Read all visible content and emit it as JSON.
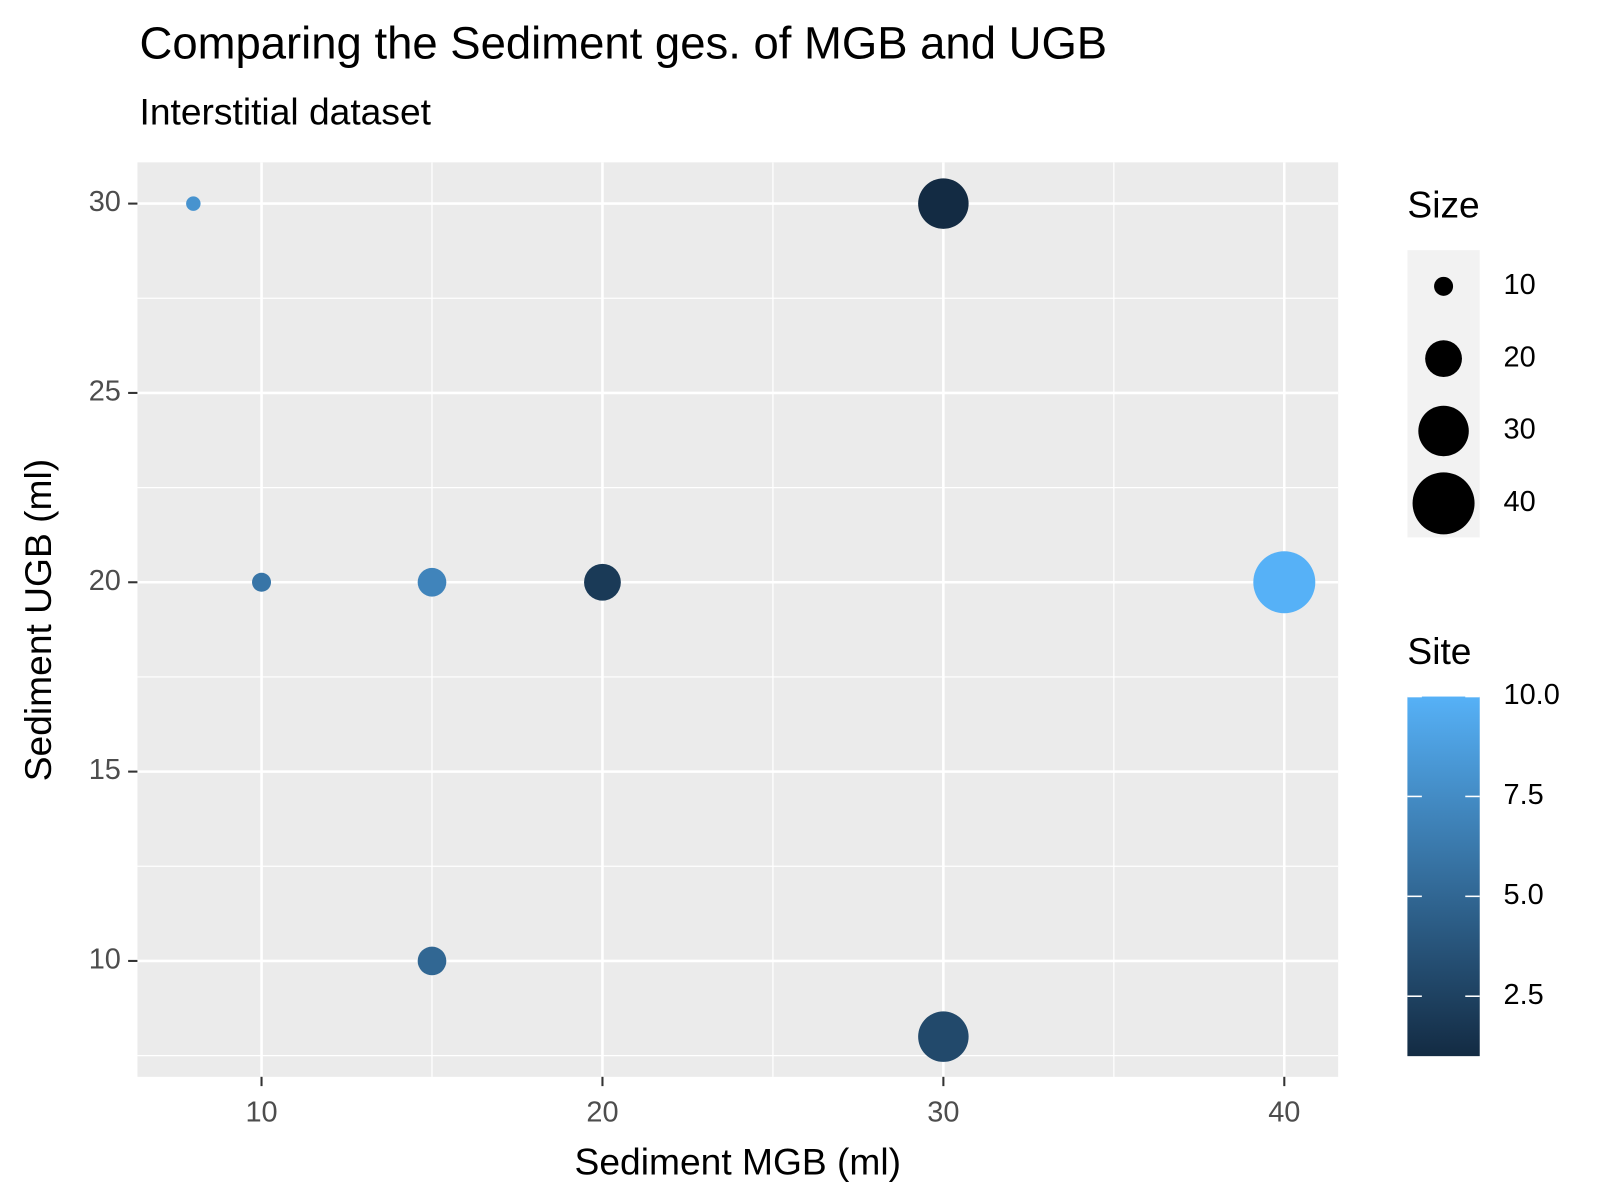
{
  "chart_data": {
    "type": "scatter",
    "title": "Comparing the Sediment ges. of MGB and UGB",
    "subtitle": "Interstitial dataset",
    "x_label": "Sediment MGB (ml)",
    "y_label": "Sediment UGB (ml)",
    "x": [
      8,
      10,
      15,
      20,
      30,
      40,
      15,
      30
    ],
    "y": [
      30,
      20,
      20,
      20,
      30,
      20,
      10,
      8
    ],
    "size": [
      8,
      10,
      15,
      20,
      30,
      40,
      15,
      30
    ],
    "site": [
      8,
      6,
      7,
      2,
      1,
      10,
      5,
      3
    ],
    "xlim": [
      6.36,
      41.58
    ],
    "ylim": [
      6.94,
      31.09
    ],
    "xticks": [
      10,
      20,
      30,
      40
    ],
    "yticks": [
      10,
      15,
      20,
      25,
      30
    ],
    "grid": true,
    "size_legend": {
      "title": "Size",
      "breaks": [
        10,
        20,
        30,
        40
      ],
      "color": "#000000"
    },
    "color_legend": {
      "title": "Site",
      "colors": [
        "#132B43",
        "#56B1F7"
      ],
      "ticks": [
        2.5,
        {
          "value": 5,
          "label": "5.0"
        },
        7.5,
        {
          "value": 10,
          "label": "10.0"
        }
      ]
    }
  }
}
